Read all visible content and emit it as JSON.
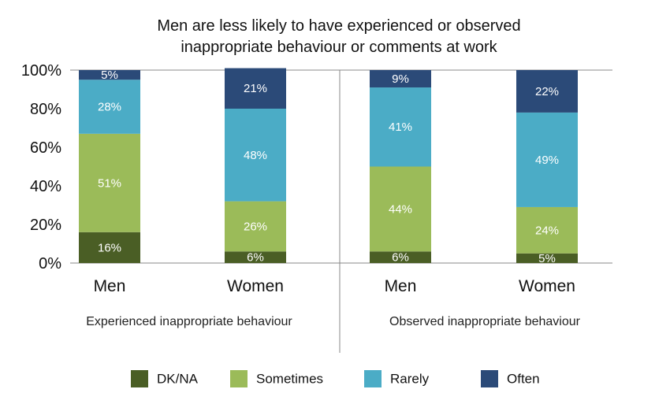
{
  "chart_data": {
    "type": "bar",
    "stacked": true,
    "title": [
      "Men are less likely to have experienced or observed",
      "inappropriate behaviour or comments at work"
    ],
    "ylim": [
      0,
      100
    ],
    "yticks": [
      "0%",
      "20%",
      "40%",
      "60%",
      "80%",
      "100%"
    ],
    "ytick_values": [
      0,
      20,
      40,
      60,
      80,
      100
    ],
    "groups": [
      "Experienced inappropriate behaviour",
      "Observed inappropriate behaviour"
    ],
    "categories": [
      "Men",
      "Women",
      "Men",
      "Women"
    ],
    "category_group": [
      0,
      0,
      1,
      1
    ],
    "series": [
      {
        "name": "DK/NA",
        "color": "#4a5e25",
        "values": [
          16,
          6,
          6,
          5
        ],
        "labels": [
          "16%",
          "6%",
          "6%",
          "5%"
        ]
      },
      {
        "name": "Sometimes",
        "color": "#9bbb59",
        "values": [
          51,
          26,
          44,
          24
        ],
        "labels": [
          "51%",
          "26%",
          "44%",
          "24%"
        ]
      },
      {
        "name": "Rarely",
        "color": "#4bacc6",
        "values": [
          28,
          48,
          41,
          49
        ],
        "labels": [
          "28%",
          "48%",
          "41%",
          "49%"
        ]
      },
      {
        "name": "Often",
        "color": "#2b4a78",
        "values": [
          5,
          21,
          9,
          22
        ],
        "labels": [
          "5%",
          "21%",
          "9%",
          "22%"
        ]
      }
    ],
    "legend_position": "bottom",
    "grid": false
  }
}
